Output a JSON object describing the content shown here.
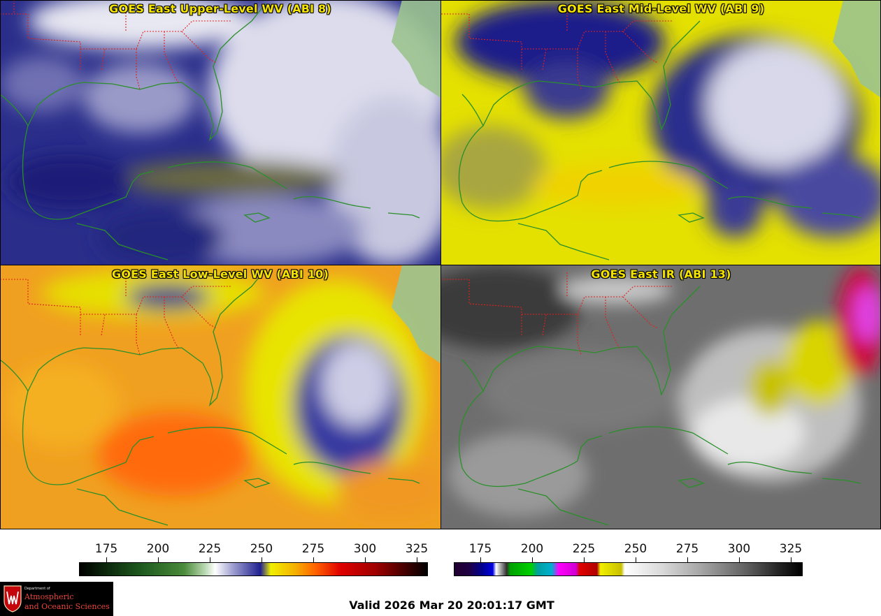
{
  "panels": [
    {
      "title": "GOES East Upper-Level WV (ABI 8)",
      "scheme": "wv8"
    },
    {
      "title": "GOES East Mid-Level WV (ABI 9)",
      "scheme": "wv9"
    },
    {
      "title": "GOES East Low-Level WV (ABI 10)",
      "scheme": "wv10"
    },
    {
      "title": "GOES East IR (ABI 13)",
      "scheme": "ir13"
    }
  ],
  "colorbars": {
    "wv": {
      "ticks": [
        "175",
        "200",
        "225",
        "250",
        "275",
        "300",
        "325"
      ]
    },
    "ir": {
      "ticks": [
        "175",
        "200",
        "225",
        "250",
        "275",
        "300",
        "325"
      ]
    }
  },
  "logo": {
    "department": "Department of",
    "line1": "Atmospheric",
    "line2": "and Oceanic Sciences"
  },
  "valid_text": "Valid 2026 Mar 20 20:01:17 GMT",
  "colors": {
    "coastline": "#1f8a1f",
    "state_borders": "#e0201c",
    "title_text": "#f5e400",
    "land_green": "#9bc38f"
  }
}
